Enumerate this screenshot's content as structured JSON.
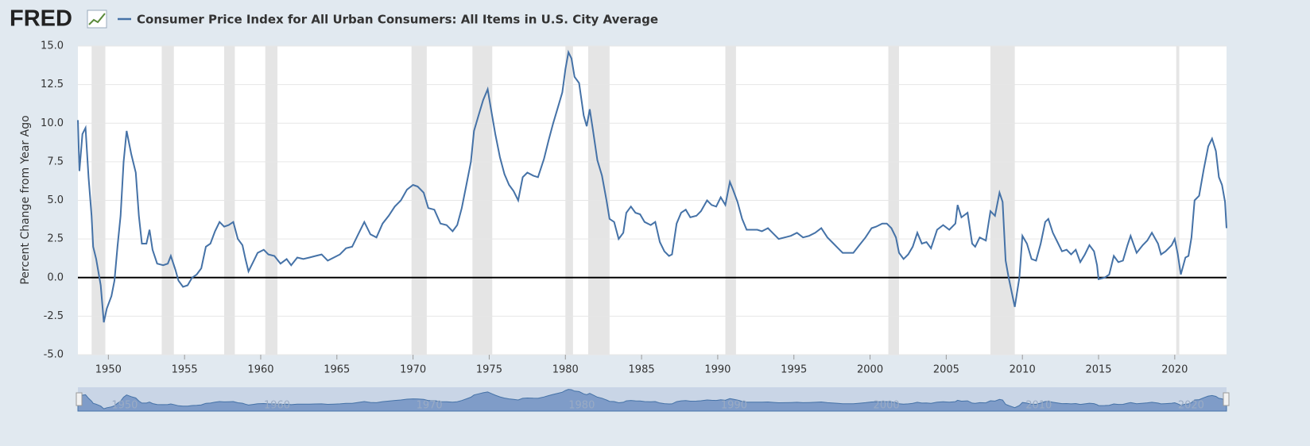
{
  "logo": "FRED",
  "chart_data": {
    "type": "line",
    "y_label": "Percent Change from Year Ago",
    "xlim": [
      1948,
      2023.4
    ],
    "xticks": [
      1950,
      1955,
      1960,
      1965,
      1970,
      1975,
      1980,
      1985,
      1990,
      1995,
      2000,
      2005,
      2010,
      2015,
      2020
    ],
    "ylim": [
      -5,
      15
    ],
    "yticks": [
      {
        "value": -5,
        "label": "-5.0"
      },
      {
        "value": -2.5,
        "label": "-2.5"
      },
      {
        "value": 0,
        "label": "0.0"
      },
      {
        "value": 2.5,
        "label": "2.5"
      },
      {
        "value": 5,
        "label": "5.0"
      },
      {
        "value": 7.5,
        "label": "7.5"
      },
      {
        "value": 10,
        "label": "10.0"
      },
      {
        "value": 12.5,
        "label": "12.5"
      },
      {
        "value": 15,
        "label": "15.0"
      }
    ],
    "grid": true,
    "zero_line": true,
    "recessions": [
      [
        1948.9,
        1949.8
      ],
      [
        1953.5,
        1954.3
      ],
      [
        1957.6,
        1958.3
      ],
      [
        1960.3,
        1961.1
      ],
      [
        1969.9,
        1970.9
      ],
      [
        1973.9,
        1975.2
      ],
      [
        1980.0,
        1980.5
      ],
      [
        1981.5,
        1982.9
      ],
      [
        1990.5,
        1991.2
      ],
      [
        2001.2,
        2001.9
      ],
      [
        2007.9,
        2009.5
      ],
      [
        2020.1,
        2020.3
      ]
    ],
    "navigator_xticks": [
      1950,
      1960,
      1970,
      1980,
      1990,
      2000,
      2010,
      2020
    ],
    "x": [
      1948.0,
      1948.1,
      1948.3,
      1948.5,
      1948.7,
      1948.9,
      1949.0,
      1949.2,
      1949.5,
      1949.7,
      1949.9,
      1950.2,
      1950.4,
      1950.6,
      1950.8,
      1951.0,
      1951.2,
      1951.5,
      1951.8,
      1952.0,
      1952.2,
      1952.5,
      1952.7,
      1952.9,
      1953.2,
      1953.6,
      1953.9,
      1954.1,
      1954.4,
      1954.6,
      1954.9,
      1955.2,
      1955.5,
      1955.8,
      1956.1,
      1956.4,
      1956.7,
      1957.0,
      1957.3,
      1957.6,
      1957.9,
      1958.2,
      1958.5,
      1958.8,
      1959.0,
      1959.2,
      1959.5,
      1959.8,
      1960.2,
      1960.5,
      1960.9,
      1961.3,
      1961.7,
      1962.0,
      1962.4,
      1962.8,
      1963.2,
      1963.6,
      1964.0,
      1964.4,
      1964.8,
      1965.2,
      1965.6,
      1966.0,
      1966.4,
      1966.8,
      1967.2,
      1967.6,
      1968.0,
      1968.4,
      1968.8,
      1969.2,
      1969.6,
      1970.0,
      1970.3,
      1970.7,
      1971.0,
      1971.4,
      1971.8,
      1972.2,
      1972.6,
      1972.9,
      1973.2,
      1973.5,
      1973.8,
      1974.0,
      1974.3,
      1974.6,
      1974.9,
      1975.1,
      1975.4,
      1975.7,
      1976.0,
      1976.3,
      1976.6,
      1976.9,
      1977.2,
      1977.5,
      1977.9,
      1978.2,
      1978.6,
      1978.9,
      1979.2,
      1979.5,
      1979.8,
      1980.0,
      1980.2,
      1980.4,
      1980.6,
      1980.9,
      1981.2,
      1981.4,
      1981.6,
      1981.8,
      1982.1,
      1982.4,
      1982.7,
      1982.9,
      1983.2,
      1983.5,
      1983.8,
      1984.0,
      1984.3,
      1984.6,
      1984.9,
      1985.2,
      1985.6,
      1985.9,
      1986.2,
      1986.5,
      1986.8,
      1987.0,
      1987.3,
      1987.6,
      1987.9,
      1988.2,
      1988.6,
      1988.9,
      1989.3,
      1989.6,
      1989.9,
      1990.2,
      1990.5,
      1990.8,
      1991.0,
      1991.3,
      1991.6,
      1991.9,
      1992.2,
      1992.6,
      1992.9,
      1993.3,
      1993.7,
      1994.0,
      1994.4,
      1994.8,
      1995.2,
      1995.6,
      1996.0,
      1996.4,
      1996.8,
      1997.2,
      1997.6,
      1997.9,
      1998.2,
      1998.6,
      1998.9,
      1999.3,
      1999.7,
      2000.1,
      2000.4,
      2000.8,
      2001.1,
      2001.4,
      2001.7,
      2001.9,
      2002.2,
      2002.5,
      2002.8,
      2003.1,
      2003.4,
      2003.7,
      2004.0,
      2004.4,
      2004.8,
      2005.2,
      2005.6,
      2005.75,
      2006.0,
      2006.4,
      2006.7,
      2006.9,
      2007.2,
      2007.6,
      2007.9,
      2008.2,
      2008.5,
      2008.7,
      2008.9,
      2009.1,
      2009.5,
      2009.8,
      2010.0,
      2010.3,
      2010.6,
      2010.9,
      2011.2,
      2011.5,
      2011.7,
      2012.0,
      2012.3,
      2012.6,
      2012.9,
      2013.2,
      2013.5,
      2013.8,
      2014.1,
      2014.4,
      2014.7,
      2014.9,
      2015.0,
      2015.4,
      2015.7,
      2016.0,
      2016.3,
      2016.6,
      2016.9,
      2017.1,
      2017.5,
      2017.9,
      2018.2,
      2018.5,
      2018.9,
      2019.1,
      2019.4,
      2019.8,
      2020.0,
      2020.2,
      2020.4,
      2020.7,
      2020.9,
      2021.1,
      2021.3,
      2021.6,
      2021.9,
      2022.2,
      2022.45,
      2022.7,
      2022.9,
      2023.1,
      2023.3,
      2023.4
    ],
    "series": [
      {
        "name": "Consumer Price Index for All Urban Consumers: All Items in U.S. City Average",
        "color": "#4572a7",
        "values": [
          10.2,
          6.9,
          9.3,
          9.7,
          6.5,
          4,
          2.0,
          1.2,
          -0.5,
          -2.9,
          -2.0,
          -1.2,
          -0.2,
          2.0,
          4,
          7.5,
          9.5,
          8,
          6.8,
          4,
          2.2,
          2.2,
          3.1,
          1.8,
          0.9,
          0.8,
          0.9,
          1.4,
          0.5,
          -0.2,
          -0.6,
          -0.5,
          0.0,
          0.2,
          0.6,
          2.0,
          2.2,
          3.0,
          3.6,
          3.3,
          3.4,
          3.6,
          2.5,
          2.1,
          1.2,
          0.4,
          1.0,
          1.6,
          1.8,
          1.5,
          1.4,
          0.9,
          1.2,
          0.8,
          1.3,
          1.2,
          1.3,
          1.4,
          1.5,
          1.1,
          1.3,
          1.5,
          1.9,
          2.0,
          2.8,
          3.6,
          2.8,
          2.6,
          3.5,
          4.0,
          4.6,
          5.0,
          5.7,
          6.0,
          5.9,
          5.5,
          4.5,
          4.4,
          3.5,
          3.4,
          3.0,
          3.4,
          4.5,
          6.0,
          7.5,
          9.5,
          10.5,
          11.5,
          12.2,
          11.0,
          9.3,
          7.8,
          6.7,
          6.0,
          5.6,
          5.0,
          6.5,
          6.8,
          6.6,
          6.5,
          7.7,
          8.9,
          10.0,
          11.0,
          12.0,
          13.5,
          14.6,
          14.2,
          13.0,
          12.6,
          10.5,
          9.8,
          10.9,
          9.6,
          7.6,
          6.6,
          5.0,
          3.8,
          3.6,
          2.5,
          2.9,
          4.2,
          4.6,
          4.2,
          4.1,
          3.6,
          3.4,
          3.6,
          2.3,
          1.7,
          1.4,
          1.5,
          3.5,
          4.2,
          4.4,
          3.9,
          4.0,
          4.3,
          5.0,
          4.7,
          4.6,
          5.2,
          4.7,
          6.2,
          5.7,
          4.9,
          3.8,
          3.1,
          3.1,
          3.1,
          3.0,
          3.2,
          2.8,
          2.5,
          2.6,
          2.7,
          2.9,
          2.6,
          2.7,
          2.9,
          3.2,
          2.6,
          2.2,
          1.9,
          1.6,
          1.6,
          1.6,
          2.1,
          2.6,
          3.2,
          3.3,
          3.5,
          3.5,
          3.2,
          2.6,
          1.6,
          1.2,
          1.5,
          2.0,
          2.9,
          2.2,
          2.3,
          1.9,
          3.1,
          3.4,
          3.1,
          3.5,
          4.7,
          3.9,
          4.2,
          2.2,
          2.0,
          2.6,
          2.4,
          4.3,
          4.0,
          5.5,
          4.9,
          1.1,
          0.0,
          -1.9,
          0.0,
          2.7,
          2.2,
          1.2,
          1.1,
          2.2,
          3.6,
          3.8,
          2.9,
          2.3,
          1.7,
          1.8,
          1.5,
          1.8,
          1.0,
          1.5,
          2.1,
          1.7,
          0.8,
          -0.1,
          0.0,
          0.2,
          1.4,
          1.0,
          1.1,
          2.1,
          2.7,
          1.6,
          2.1,
          2.4,
          2.9,
          2.2,
          1.5,
          1.7,
          2.1,
          2.5,
          1.5,
          0.2,
          1.3,
          1.4,
          2.6,
          5.0,
          5.3,
          7.0,
          8.5,
          9.0,
          8.2,
          6.5,
          6.0,
          4.9,
          3.2
        ]
      }
    ]
  }
}
